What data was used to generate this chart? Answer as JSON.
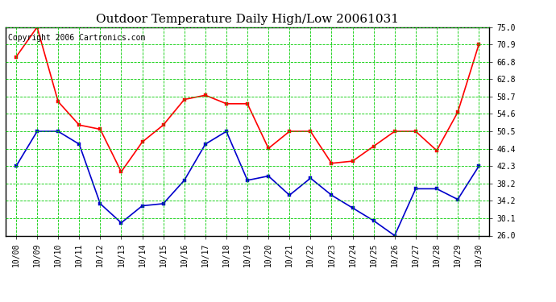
{
  "title": "Outdoor Temperature Daily High/Low 20061031",
  "copyright_text": "Copyright 2006 Cartronics.com",
  "x_labels": [
    "10/08",
    "10/09",
    "10/10",
    "10/11",
    "10/12",
    "10/13",
    "10/14",
    "10/15",
    "10/16",
    "10/17",
    "10/18",
    "10/19",
    "10/20",
    "10/21",
    "10/22",
    "10/23",
    "10/24",
    "10/25",
    "10/26",
    "10/27",
    "10/28",
    "10/29",
    "10/30"
  ],
  "high_temps": [
    68.0,
    75.0,
    57.5,
    52.0,
    51.0,
    41.0,
    48.0,
    52.0,
    58.0,
    59.0,
    57.0,
    57.0,
    46.5,
    50.5,
    50.5,
    43.0,
    43.5,
    47.0,
    50.5,
    50.5,
    46.0,
    55.0,
    70.9
  ],
  "low_temps": [
    42.3,
    50.5,
    50.5,
    47.5,
    33.5,
    29.0,
    33.0,
    33.5,
    39.0,
    47.5,
    50.5,
    39.0,
    40.0,
    35.5,
    39.5,
    35.5,
    32.5,
    29.5,
    26.0,
    37.0,
    37.0,
    34.5,
    42.3
  ],
  "high_color": "#ff0000",
  "low_color": "#0000cc",
  "marker": "s",
  "marker_size": 3,
  "linewidth": 1.2,
  "ylim_min": 26.0,
  "ylim_max": 75.0,
  "yticks": [
    26.0,
    30.1,
    34.2,
    38.2,
    42.3,
    46.4,
    50.5,
    54.6,
    58.7,
    62.8,
    66.8,
    70.9,
    75.0
  ],
  "background_color": "#ffffff",
  "grid_color": "#00cc00",
  "title_fontsize": 11,
  "copyright_fontsize": 7,
  "tick_fontsize": 7
}
